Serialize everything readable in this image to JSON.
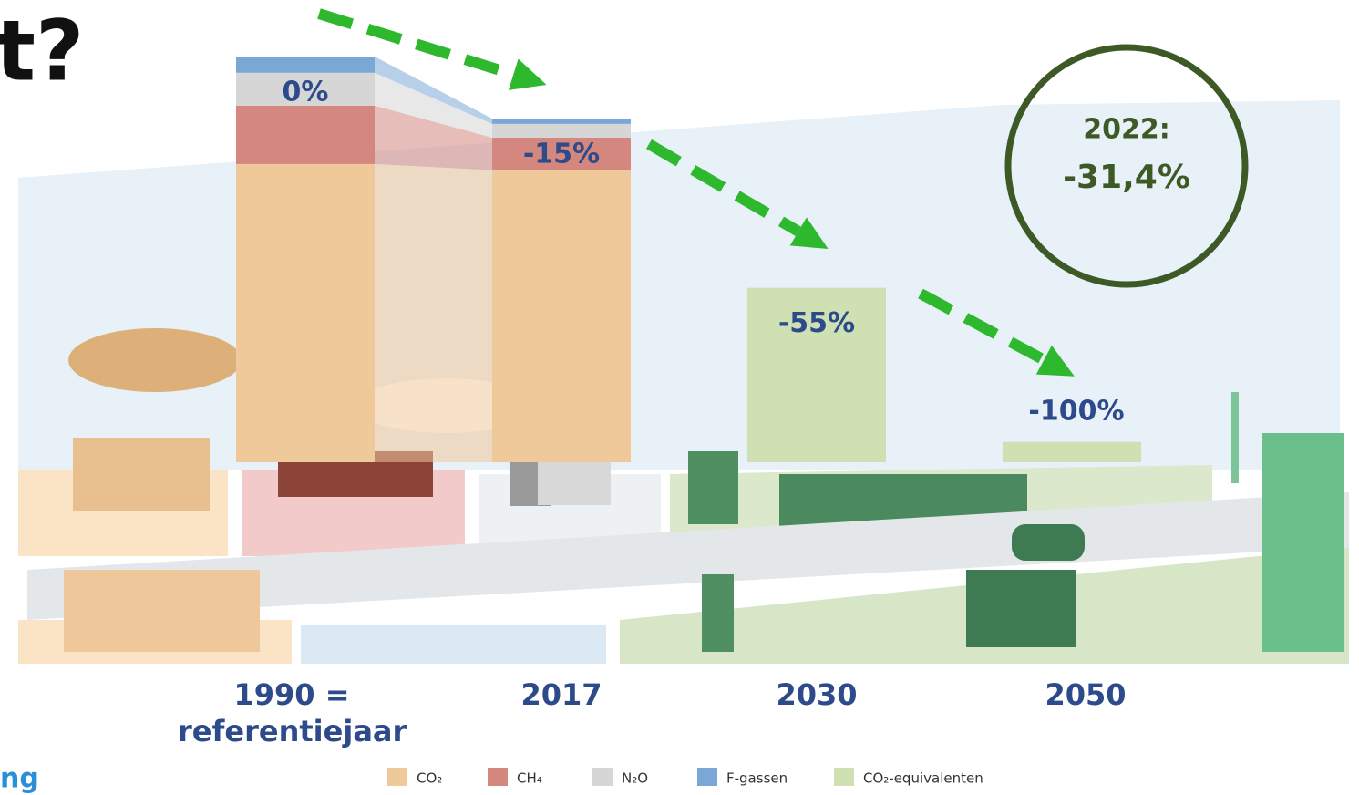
{
  "chart_data": {
    "type": "bar",
    "stacked": true,
    "title": "t?",
    "subtitle": "ng",
    "categories": [
      "1990 = referentiejaar",
      "2017",
      "2030",
      "2050"
    ],
    "series": [
      {
        "name": "CO₂",
        "color": "#f0c99a",
        "values": [
          73.5,
          72,
          null,
          null
        ]
      },
      {
        "name": "CH₄",
        "color": "#d4877f",
        "values": [
          14.4,
          8,
          null,
          null
        ]
      },
      {
        "name": "N₂O",
        "color": "#d6d6d6",
        "values": [
          8.1,
          3.4,
          null,
          null
        ]
      },
      {
        "name": "F-gassen",
        "color": "#7ba7d6",
        "values": [
          4,
          1.3,
          null,
          null
        ]
      },
      {
        "name": "CO₂-equivalenten",
        "color": "#cfe0b3",
        "values": [
          null,
          null,
          43,
          5
        ]
      }
    ],
    "annotations": [
      "0%",
      "-15%",
      "-55%",
      "-100%"
    ],
    "callout": {
      "year": "2022:",
      "text": "-31,4%",
      "color": "#3d5a26"
    },
    "arrow_color": "#2eb82e",
    "label_color": "#2d4a8a"
  }
}
